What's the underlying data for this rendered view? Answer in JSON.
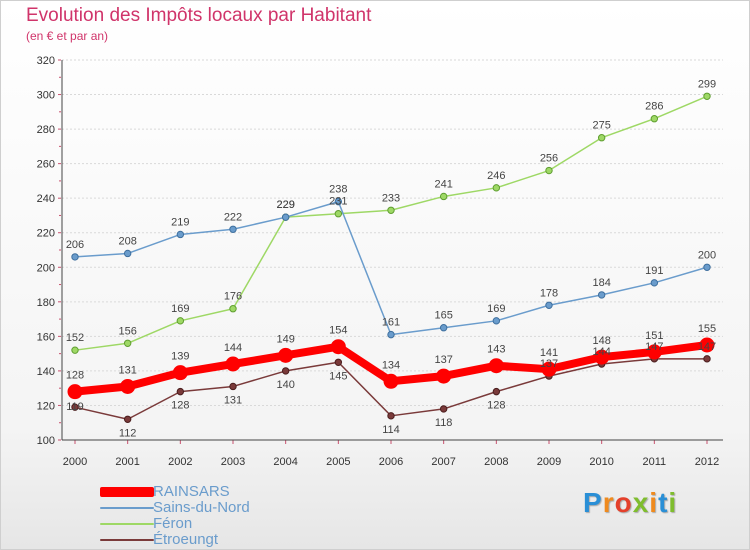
{
  "chart_data": {
    "type": "line",
    "title": "Evolution des Impôts locaux par Habitant",
    "subtitle": "(en € et par an)",
    "xlabel": "",
    "ylabel": "",
    "x": [
      "2000",
      "2001",
      "2002",
      "2003",
      "2004",
      "2005",
      "2006",
      "2007",
      "2008",
      "2009",
      "2010",
      "2011",
      "2012"
    ],
    "ylim": [
      100,
      320
    ],
    "yticks": [
      "100",
      "120",
      "140",
      "160",
      "180",
      "200",
      "220",
      "240",
      "260",
      "280",
      "300",
      "320"
    ],
    "grid": "horizontal",
    "legend_position": "bottom-left",
    "series": [
      {
        "name": "RAINSARS",
        "color": "#ff0000",
        "values": [
          128,
          131,
          139,
          144,
          149,
          154,
          134,
          137,
          143,
          141,
          148,
          151,
          155
        ]
      },
      {
        "name": "Sains-du-Nord",
        "color": "#6a9ccc",
        "values": [
          206,
          208,
          219,
          222,
          229,
          238,
          161,
          165,
          169,
          178,
          184,
          191,
          200
        ]
      },
      {
        "name": "Féron",
        "color": "#9ed865",
        "values": [
          152,
          156,
          169,
          176,
          229,
          231,
          233,
          241,
          246,
          256,
          275,
          286,
          299
        ]
      },
      {
        "name": "Étroeungt",
        "color": "#7a3a3a",
        "values": [
          119,
          112,
          128,
          131,
          140,
          145,
          114,
          118,
          128,
          137,
          144,
          147,
          147
        ]
      }
    ]
  },
  "brand": {
    "logo_letters": [
      "P",
      "r",
      "o",
      "x",
      "i",
      "t",
      "i"
    ],
    "title_color": "#d0346a"
  }
}
